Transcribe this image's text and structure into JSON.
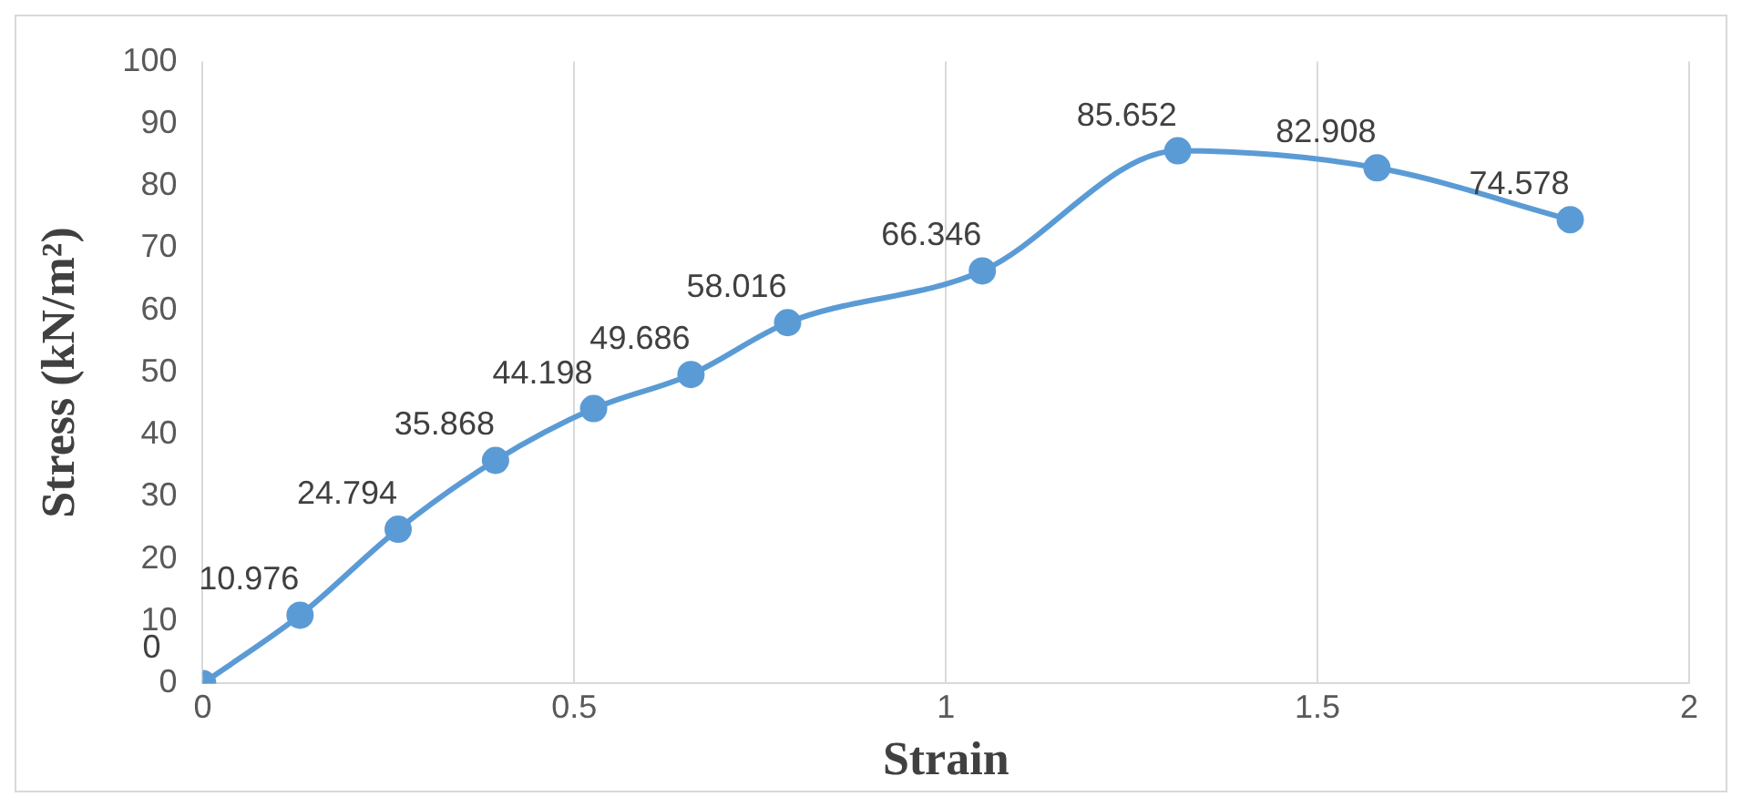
{
  "chart_data": {
    "type": "line",
    "xlabel": "Strain",
    "ylabel": "Stress (kN/m²)",
    "x": [
      0,
      0.131,
      0.263,
      0.394,
      0.526,
      0.657,
      0.787,
      1.049,
      1.312,
      1.58,
      1.84
    ],
    "series": [
      {
        "color": "#5b9bd5",
        "values": [
          0,
          10.976,
          24.794,
          35.868,
          44.198,
          49.686,
          58.016,
          66.346,
          85.652,
          82.908,
          74.578
        ]
      }
    ],
    "xlim": [
      0,
      2
    ],
    "xticks": [
      0,
      0.5,
      1,
      1.5,
      2
    ],
    "ylim": [
      0,
      100
    ],
    "yticks": [
      0,
      10,
      20,
      30,
      40,
      50,
      60,
      70,
      80,
      90,
      100
    ],
    "grid": "x",
    "legend": false,
    "marker": "circle",
    "line_style": "solid",
    "data_labels": true
  }
}
